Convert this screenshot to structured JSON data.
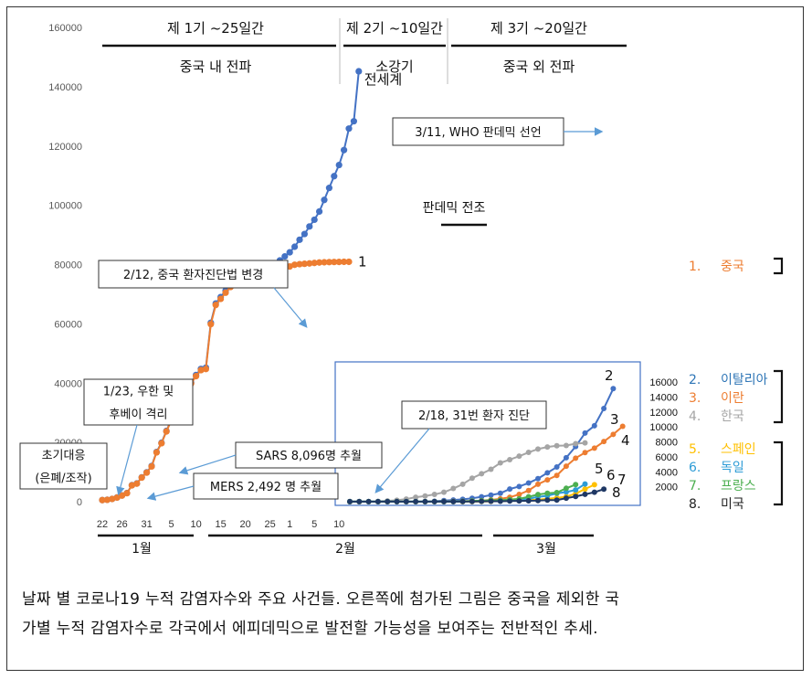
{
  "caption": {
    "line1": "날짜 별 코로나19 누적 감염자수와 주요 사건들. 오른쪽에 첨가된 그림은 중국을 제외한 국",
    "line2": "가별 누적 감염자수로 각국에서 에피데믹으로 발전할 가능성을 보여주는 전반적인 추세."
  },
  "phases": [
    {
      "label": "제 1기 ~25일간",
      "sub": "중국 내 전파"
    },
    {
      "label": "제 2기 ~10일간",
      "sub": "소강기"
    },
    {
      "label": "제 3기 ~20일간",
      "sub": "중국 외 전파"
    }
  ],
  "pandemic_omen": "판데믹 전조",
  "months": [
    "1월",
    "2월",
    "3월"
  ],
  "annotations": {
    "who": "3/11, WHO 판데믹 선언",
    "china_change": "2/12, 중국 환자진단법 변경",
    "wuhan_1": "1/23, 우한 및",
    "wuhan_2": "후베이 격리",
    "early_1": "초기대응",
    "early_2": "(은폐/조작)",
    "sars": "SARS 8,096명 추월",
    "mers": "MERS 2,492 명 추월",
    "patient31": "2/18, 31번 환자 진단"
  },
  "legend": [
    {
      "num": "1.",
      "name": "중국",
      "color": "#ED7D31"
    },
    {
      "num": "2.",
      "name": "이탈리아",
      "color": "#2E75B6"
    },
    {
      "num": "3.",
      "name": "이란",
      "color": "#ED7D31"
    },
    {
      "num": "4.",
      "name": "한국",
      "color": "#A5A5A5"
    },
    {
      "num": "5.",
      "name": "스페인",
      "color": "#FFC000"
    },
    {
      "num": "6.",
      "name": "독일",
      "color": "#2E9CD6"
    },
    {
      "num": "7.",
      "name": "프랑스",
      "color": "#4CAF50"
    },
    {
      "num": "8.",
      "name": "미국",
      "color": "#222222"
    }
  ],
  "chart_data": [
    {
      "type": "line",
      "ylim": [
        0,
        160000
      ],
      "yticks": [
        "0",
        "20000",
        "40000",
        "60000",
        "80000",
        "100000",
        "120000",
        "140000",
        "160000"
      ],
      "xticks": [
        "22",
        "26",
        "31",
        "5",
        "10",
        "15",
        "20",
        "25",
        "1",
        "5",
        "10"
      ],
      "series": [
        {
          "name": "전세계",
          "color": "#4472C4",
          "values": [
            555,
            653,
            941,
            1438,
            2118,
            2927,
            5578,
            6166,
            8234,
            9927,
            12038,
            16787,
            19881,
            23892,
            27635,
            30817,
            34391,
            37120,
            40150,
            42762,
            44802,
            45221,
            60368,
            66885,
            69030,
            71224,
            73258,
            75136,
            75639,
            76197,
            76823,
            77206,
            78167,
            78985,
            79570,
            80415,
            81397,
            82756,
            84124,
            86013,
            88371,
            90309,
            92844,
            95124,
            97886,
            101801,
            105847,
            109821,
            113590,
            118620,
            125875,
            128343,
            145193
          ]
        },
        {
          "name": "1",
          "color": "#ED7D31",
          "values": [
            548,
            643,
            920,
            1406,
            2075,
            2877,
            5509,
            6087,
            8141,
            9802,
            11891,
            16630,
            19716,
            23707,
            27440,
            30587,
            34110,
            36814,
            39829,
            42354,
            44386,
            44759,
            59895,
            66358,
            68413,
            70513,
            72434,
            74211,
            74619,
            75077,
            75550,
            77001,
            77022,
            77241,
            77754,
            78166,
            78600,
            78928,
            79356,
            79932,
            80136,
            80261,
            80386,
            80537,
            80690,
            80770,
            80823,
            80860,
            80887,
            80921,
            80932
          ]
        }
      ]
    },
    {
      "type": "line",
      "ylim": [
        0,
        16000
      ],
      "yticks": [
        "2000",
        "4000",
        "6000",
        "8000",
        "10000",
        "12000",
        "14000",
        "16000"
      ],
      "series": [
        {
          "name": "2",
          "color": "#4472C4",
          "values": [
            3,
            3,
            3,
            3,
            3,
            3,
            3,
            3,
            20,
            62,
            155,
            229,
            322,
            453,
            655,
            888,
            1128,
            1694,
            2036,
            2502,
            3089,
            3858,
            4636,
            5883,
            7375,
            9172,
            10149,
            12462,
            15113
          ]
        },
        {
          "name": "3",
          "color": "#ED7D31",
          "values": [
            0,
            0,
            0,
            0,
            0,
            0,
            0,
            2,
            5,
            18,
            28,
            43,
            61,
            95,
            139,
            245,
            388,
            593,
            978,
            1501,
            2336,
            2922,
            3513,
            4747,
            5823,
            6566,
            7161,
            8042,
            9000,
            10075
          ]
        },
        {
          "name": "4",
          "color": "#A5A5A5",
          "values": [
            30,
            30,
            31,
            51,
            104,
            204,
            346,
            602,
            763,
            977,
            1261,
            1766,
            2337,
            3150,
            3736,
            4335,
            5186,
            5621,
            6088,
            6593,
            7041,
            7314,
            7478,
            7513,
            7755,
            7869
          ]
        },
        {
          "name": "5",
          "color": "#FFC000",
          "values": [
            0,
            0,
            0,
            0,
            0,
            0,
            0,
            0,
            0,
            0,
            2,
            2,
            2,
            13,
            32,
            45,
            84,
            120,
            165,
            222,
            259,
            400,
            500,
            673,
            1073,
            1695,
            2277
          ]
        },
        {
          "name": "6",
          "color": "#2E9CD6",
          "values": [
            16,
            16,
            16,
            16,
            16,
            16,
            16,
            16,
            16,
            16,
            18,
            21,
            26,
            53,
            66,
            117,
            150,
            188,
            240,
            400,
            639,
            795,
            1112,
            1296,
            1567,
            2369
          ]
        },
        {
          "name": "7",
          "color": "#4CAF50",
          "values": [
            12,
            12,
            12,
            12,
            12,
            12,
            12,
            12,
            12,
            14,
            18,
            38,
            57,
            100,
            130,
            191,
            204,
            288,
            380,
            656,
            957,
            1136,
            1219,
            1794,
            2284
          ]
        },
        {
          "name": "8",
          "color": "#1F3864",
          "values": [
            15,
            15,
            15,
            15,
            15,
            15,
            15,
            15,
            15,
            15,
            15,
            15,
            35,
            35,
            53,
            57,
            60,
            85,
            108,
            129,
            148,
            213,
            221,
            472,
            696,
            987,
            1264,
            1678
          ]
        }
      ]
    }
  ]
}
